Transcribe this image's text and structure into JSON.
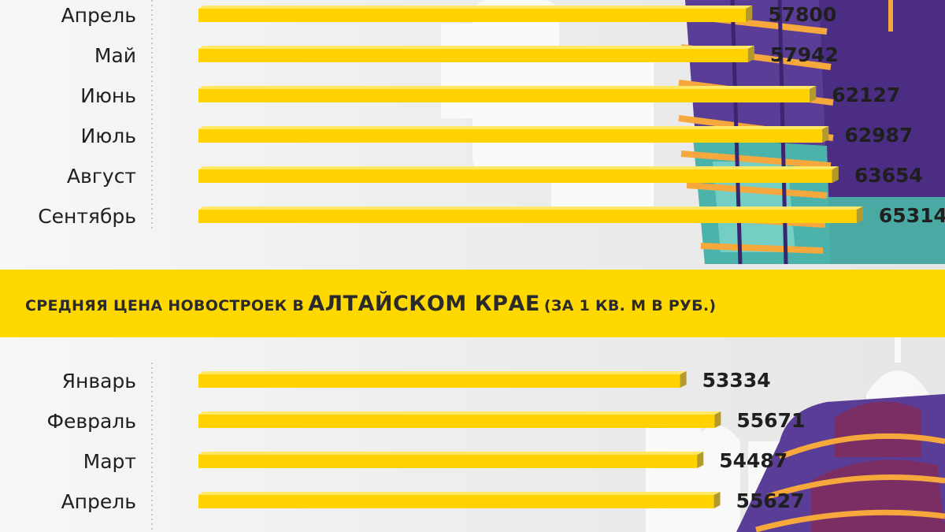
{
  "title": {
    "prefix": "СРЕДНЯЯ ЦЕНА НОВОСТРОЕК В",
    "highlight": "АЛТАЙСКОМ КРАЕ",
    "suffix": "(ЗА 1 КВ. М В РУБ.)"
  },
  "colors": {
    "bar": "#ffd200",
    "bar_shade": "#b49a2c",
    "band": "#ffd800",
    "text": "#1f1f1f"
  },
  "chart_data": [
    {
      "type": "bar",
      "orientation": "horizontal",
      "categories": [
        "Апрель",
        "Май",
        "Июнь",
        "Июль",
        "Август",
        "Сентябрь"
      ],
      "values": [
        57800,
        57942,
        62127,
        62987,
        63654,
        65314
      ],
      "data_labels": [
        "57800",
        "57942",
        "62127",
        "62987",
        "63654",
        "65314"
      ]
    },
    {
      "type": "bar",
      "orientation": "horizontal",
      "categories": [
        "Январь",
        "Февраль",
        "Март",
        "Апрель"
      ],
      "values": [
        53334,
        55671,
        54487,
        55627
      ],
      "data_labels": [
        "53334",
        "55671",
        "54487",
        "55627"
      ]
    }
  ]
}
